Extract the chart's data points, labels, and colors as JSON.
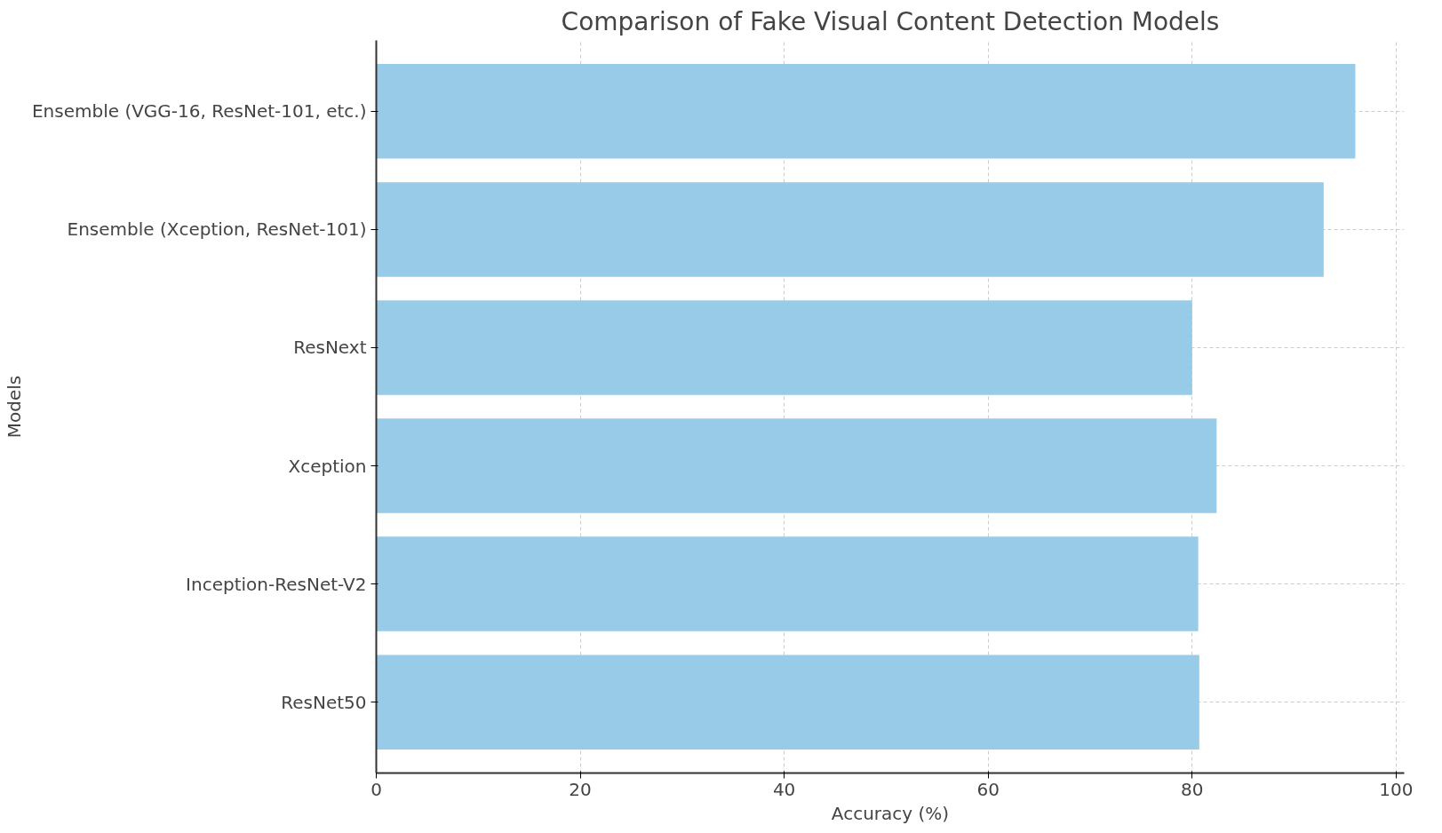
{
  "chart_data": {
    "type": "bar",
    "orientation": "horizontal",
    "title": "Comparison of Fake Visual Content Detection Models",
    "xlabel": "Accuracy (%)",
    "ylabel": "Models",
    "categories": [
      "Ensemble (VGG-16, ResNet-101, etc.)",
      "Ensemble (Xception, ResNet-101)",
      "ResNext",
      "Xception",
      "Inception-ResNet-V2",
      "ResNet50"
    ],
    "values": [
      96.0,
      92.9,
      80.0,
      82.4,
      80.6,
      80.7
    ],
    "color": "#97cbe7",
    "xlim": [
      0,
      100.8
    ],
    "xticks": [
      0,
      20,
      40,
      60,
      80,
      100
    ],
    "grid": true
  }
}
